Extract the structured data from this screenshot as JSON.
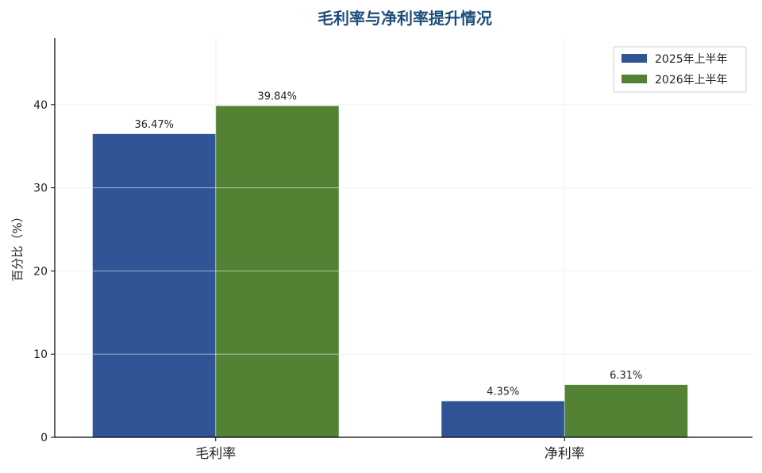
{
  "chart_data": {
    "type": "bar",
    "title": "毛利率与净利率提升情况",
    "ylabel": "百分比（%）",
    "xlabel": "",
    "categories": [
      "毛利率",
      "净利率"
    ],
    "series": [
      {
        "name": "2025年上半年",
        "values": [
          36.47,
          4.35
        ],
        "labels": [
          "36.47%",
          "4.35%"
        ],
        "color": "#2f5597"
      },
      {
        "name": "2026年上半年",
        "values": [
          39.84,
          6.31
        ],
        "labels": [
          "39.84%",
          "6.31%"
        ],
        "color": "#548235"
      }
    ],
    "ylim": [
      0,
      48
    ],
    "yticks": [
      0,
      10,
      20,
      30,
      40
    ],
    "grid": true,
    "legend": "top-right"
  }
}
